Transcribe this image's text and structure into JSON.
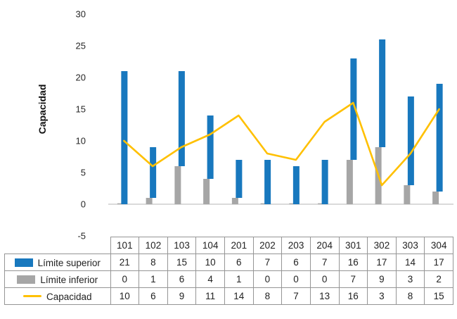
{
  "chart_data": {
    "type": "bar",
    "subtype": "stacked-bars-with-line",
    "categories": [
      "101",
      "102",
      "103",
      "104",
      "201",
      "202",
      "203",
      "204",
      "301",
      "302",
      "303",
      "304"
    ],
    "series": [
      {
        "name": "Límite superior",
        "type": "bar",
        "color": "#1878be",
        "values": [
          21,
          8,
          15,
          10,
          6,
          7,
          6,
          7,
          16,
          17,
          14,
          17
        ]
      },
      {
        "name": "Límite inferior",
        "type": "bar",
        "color": "#a6a6a6",
        "values": [
          0,
          1,
          6,
          4,
          1,
          0,
          0,
          0,
          7,
          9,
          3,
          2
        ]
      },
      {
        "name": "Capacidad",
        "type": "line",
        "color": "#ffc000",
        "values": [
          10,
          6,
          9,
          11,
          14,
          8,
          7,
          13,
          16,
          3,
          8,
          15
        ]
      }
    ],
    "title": "",
    "xlabel": "",
    "ylabel": "Capacidad",
    "ylim": [
      -5,
      30
    ],
    "yticks": [
      30,
      25,
      20,
      15,
      10,
      5,
      0,
      -5
    ],
    "grid": false,
    "legend_position": "data-table-left",
    "axis_line_color": "#b5b5b5",
    "table_border_color": "#959595"
  }
}
